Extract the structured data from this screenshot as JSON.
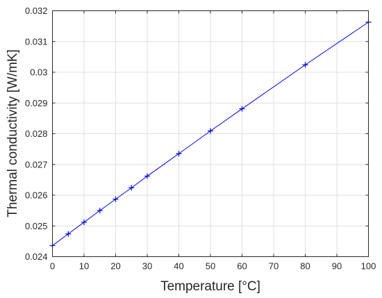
{
  "chart_data": {
    "type": "line",
    "xlabel": "Temperature [°C]",
    "ylabel": "Thermal conductivity [W/mK]",
    "xlim": [
      0,
      100
    ],
    "ylim": [
      0.024,
      0.032
    ],
    "x_ticks": [
      0,
      10,
      20,
      30,
      40,
      50,
      60,
      70,
      80,
      90,
      100
    ],
    "y_ticks": [
      0.024,
      0.025,
      0.026,
      0.027,
      0.028,
      0.029,
      0.03,
      0.031,
      0.032
    ],
    "y_tick_labels": [
      "0.024",
      "0.025",
      "0.026",
      "0.027",
      "0.028",
      "0.029",
      "0.03",
      "0.031",
      "0.032"
    ],
    "grid": true,
    "series": [
      {
        "marker": "plus",
        "color": "#0000ff",
        "x": [
          0,
          5,
          10,
          15,
          20,
          25,
          30,
          40,
          50,
          60,
          80,
          100
        ],
        "y": [
          0.02436,
          0.02474,
          0.02512,
          0.0255,
          0.02587,
          0.02624,
          0.02662,
          0.02735,
          0.02809,
          0.02881,
          0.03024,
          0.03163
        ]
      }
    ]
  }
}
